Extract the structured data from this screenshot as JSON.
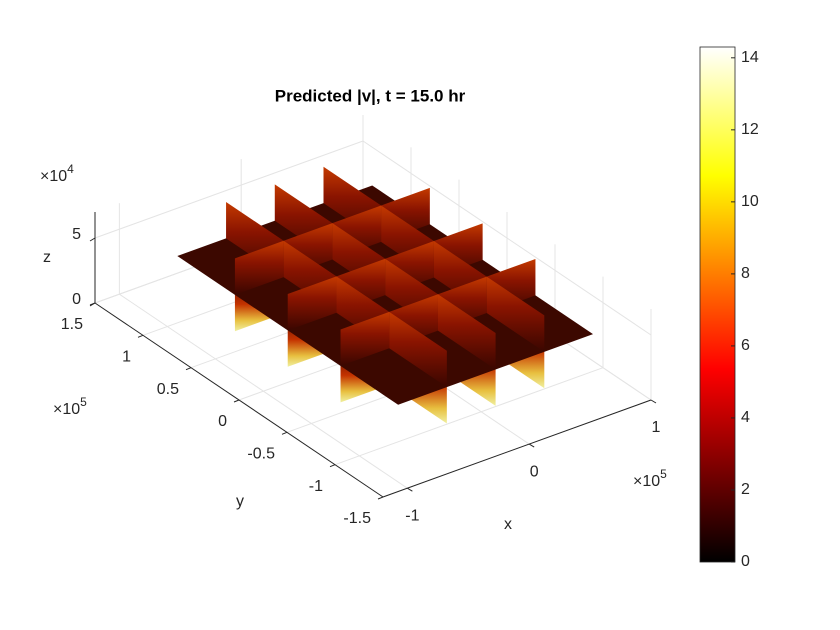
{
  "chart_data": {
    "type": "slice3d",
    "title": "Predicted |v|, t = 15.0 hr",
    "xlabel": "x",
    "ylabel": "y",
    "zlabel": "z",
    "xlim": [
      -1.2,
      1.0
    ],
    "ylim": [
      -1.5,
      1.5
    ],
    "zlim": [
      0,
      7
    ],
    "xticks": [
      -1,
      0,
      1
    ],
    "yticks": [
      -1.5,
      -1,
      -0.5,
      0,
      0.5,
      1,
      1.5
    ],
    "zticks": [
      0,
      5
    ],
    "xexponent": {
      "base": "×10",
      "power": 5
    },
    "yexponent": {
      "base": "×10",
      "power": 5
    },
    "zexponent": {
      "base": "×10",
      "power": 4
    },
    "domain": {
      "x": [
        -0.8,
        0.8
      ],
      "y": [
        -1.15,
        1.15
      ],
      "z": [
        1.2,
        6.8
      ]
    },
    "slices": {
      "x": [
        -0.4,
        0,
        0.4
      ],
      "y": [
        -0.55,
        0,
        0.55
      ],
      "z": [
        4
      ]
    },
    "colormap": "hot",
    "clim": [
      0,
      14.3
    ],
    "cticks": [
      0,
      2,
      4,
      6,
      8,
      10,
      12,
      14
    ],
    "grid": true
  }
}
